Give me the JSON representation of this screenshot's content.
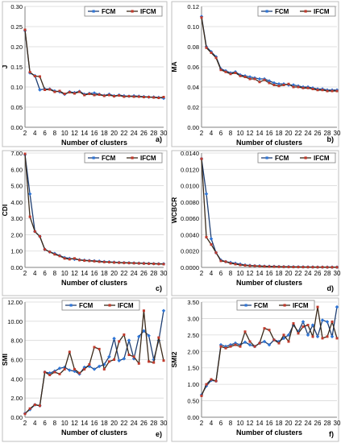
{
  "chart_data": [
    {
      "panel_label": "a)",
      "type": "line",
      "xlabel": "Number of clusters",
      "ylabel": "J",
      "ylim": [
        0,
        0.3
      ],
      "yticks": [
        "0.00",
        "0.05",
        "0.10",
        "0.15",
        "0.20",
        "0.25",
        "0.30"
      ],
      "ytick_values": [
        0,
        0.05,
        0.1,
        0.15,
        0.2,
        0.25,
        0.3
      ],
      "legend_position": "top-right",
      "x": [
        2,
        3,
        4,
        5,
        6,
        7,
        8,
        9,
        10,
        11,
        12,
        13,
        14,
        15,
        16,
        17,
        18,
        19,
        20,
        21,
        22,
        23,
        24,
        25,
        26,
        27,
        28,
        29,
        30
      ],
      "series": [
        {
          "name": "FCM",
          "color": "#2e75d6",
          "values": [
            0.24,
            0.135,
            0.128,
            0.093,
            0.095,
            0.095,
            0.09,
            0.088,
            0.082,
            0.088,
            0.086,
            0.089,
            0.082,
            0.084,
            0.085,
            0.082,
            0.079,
            0.082,
            0.078,
            0.08,
            0.078,
            0.077,
            0.078,
            0.077,
            0.076,
            0.075,
            0.075,
            0.074,
            0.072
          ]
        },
        {
          "name": "IFCM",
          "color": "#c0392b",
          "values": [
            0.242,
            0.137,
            0.127,
            0.126,
            0.093,
            0.094,
            0.088,
            0.09,
            0.083,
            0.087,
            0.084,
            0.088,
            0.08,
            0.083,
            0.08,
            0.081,
            0.078,
            0.08,
            0.077,
            0.079,
            0.076,
            0.077,
            0.076,
            0.076,
            0.075,
            0.075,
            0.074,
            0.073,
            0.075
          ]
        }
      ]
    },
    {
      "panel_label": "b)",
      "type": "line",
      "xlabel": "Number of clusters",
      "ylabel": "MA",
      "ylim": [
        0,
        0.12
      ],
      "yticks": [
        "0.00",
        "0.02",
        "0.04",
        "0.06",
        "0.08",
        "0.10",
        "0.12"
      ],
      "ytick_values": [
        0,
        0.02,
        0.04,
        0.06,
        0.08,
        0.1,
        0.12
      ],
      "legend_position": "top-right",
      "x": [
        2,
        3,
        4,
        5,
        6,
        7,
        8,
        9,
        10,
        11,
        12,
        13,
        14,
        15,
        16,
        17,
        18,
        19,
        20,
        21,
        22,
        23,
        24,
        25,
        26,
        27,
        28,
        29,
        30
      ],
      "series": [
        {
          "name": "FCM",
          "color": "#2e75d6",
          "values": [
            0.11,
            0.08,
            0.075,
            0.07,
            0.058,
            0.056,
            0.054,
            0.055,
            0.052,
            0.051,
            0.05,
            0.049,
            0.048,
            0.048,
            0.046,
            0.044,
            0.043,
            0.043,
            0.042,
            0.042,
            0.041,
            0.04,
            0.04,
            0.039,
            0.038,
            0.038,
            0.037,
            0.037,
            0.037
          ]
        },
        {
          "name": "IFCM",
          "color": "#c0392b",
          "values": [
            0.109,
            0.079,
            0.074,
            0.069,
            0.057,
            0.055,
            0.053,
            0.054,
            0.051,
            0.05,
            0.048,
            0.048,
            0.045,
            0.047,
            0.044,
            0.042,
            0.041,
            0.042,
            0.043,
            0.04,
            0.04,
            0.039,
            0.039,
            0.038,
            0.037,
            0.037,
            0.036,
            0.036,
            0.036
          ]
        }
      ]
    },
    {
      "panel_label": "c)",
      "type": "line",
      "xlabel": "Number of clusters",
      "ylabel": "CDI",
      "ylim": [
        0,
        7
      ],
      "yticks": [
        "0.00",
        "1.00",
        "2.00",
        "3.00",
        "4.00",
        "5.00",
        "6.00",
        "7.00"
      ],
      "ytick_values": [
        0,
        1,
        2,
        3,
        4,
        5,
        6,
        7
      ],
      "legend_position": "top-right",
      "x": [
        2,
        3,
        4,
        5,
        6,
        7,
        8,
        9,
        10,
        11,
        12,
        13,
        14,
        15,
        16,
        17,
        18,
        19,
        20,
        21,
        22,
        23,
        24,
        25,
        26,
        27,
        28,
        29,
        30
      ],
      "series": [
        {
          "name": "FCM",
          "color": "#2e75d6",
          "values": [
            6.9,
            4.5,
            2.2,
            1.9,
            1.1,
            0.95,
            0.85,
            0.72,
            0.6,
            0.55,
            0.5,
            0.47,
            0.44,
            0.42,
            0.4,
            0.38,
            0.35,
            0.34,
            0.32,
            0.3,
            0.29,
            0.28,
            0.27,
            0.26,
            0.25,
            0.24,
            0.23,
            0.22,
            0.22
          ]
        },
        {
          "name": "IFCM",
          "color": "#c0392b",
          "values": [
            6.95,
            3.1,
            2.2,
            1.9,
            1.1,
            0.95,
            0.8,
            0.7,
            0.55,
            0.5,
            0.55,
            0.45,
            0.42,
            0.4,
            0.38,
            0.35,
            0.33,
            0.32,
            0.3,
            0.29,
            0.28,
            0.27,
            0.26,
            0.25,
            0.24,
            0.23,
            0.22,
            0.21,
            0.2
          ]
        }
      ]
    },
    {
      "panel_label": "d)",
      "type": "line",
      "xlabel": "Number of clusters",
      "ylabel": "WCBCR",
      "ylim": [
        0,
        0.014
      ],
      "yticks": [
        "0.0000",
        "0.0020",
        "0.0040",
        "0.0060",
        "0.0080",
        "0.0100",
        "0.0120",
        "0.0140"
      ],
      "ytick_values": [
        0,
        0.002,
        0.004,
        0.006,
        0.008,
        0.01,
        0.012,
        0.014
      ],
      "legend_position": "top-right",
      "x": [
        2,
        3,
        4,
        5,
        6,
        7,
        8,
        9,
        10,
        11,
        12,
        13,
        14,
        15,
        16,
        17,
        18,
        19,
        20,
        21,
        22,
        23,
        24,
        25,
        26,
        27,
        28,
        29,
        30
      ],
      "series": [
        {
          "name": "FCM",
          "color": "#2e75d6",
          "values": [
            0.0133,
            0.009,
            0.0035,
            0.0018,
            0.0009,
            0.0007,
            0.0006,
            0.0005,
            0.0004,
            0.0003,
            0.00025,
            0.0002,
            0.00018,
            0.00015,
            0.00013,
            0.00012,
            0.0001,
            9e-05,
            8e-05,
            7e-05,
            6e-05,
            6e-05,
            5e-05,
            5e-05,
            4e-05,
            4e-05,
            3e-05,
            3e-05,
            3e-05
          ]
        },
        {
          "name": "IFCM",
          "color": "#c0392b",
          "values": [
            0.0133,
            0.0037,
            0.0028,
            0.0018,
            0.0008,
            0.0007,
            0.0005,
            0.0004,
            0.0003,
            0.00025,
            0.0002,
            0.00018,
            0.00015,
            0.00012,
            0.0001,
            9e-05,
            8e-05,
            7e-05,
            6e-05,
            5e-05,
            5e-05,
            4e-05,
            4e-05,
            3e-05,
            3e-05,
            3e-05,
            2e-05,
            2e-05,
            2e-05
          ]
        }
      ]
    },
    {
      "panel_label": "e)",
      "type": "line",
      "xlabel": "Number of clusters",
      "ylabel": "SMI",
      "ylim": [
        0,
        12
      ],
      "yticks": [
        "0.00",
        "2.00",
        "4.00",
        "6.00",
        "8.00",
        "10.00",
        "12.00"
      ],
      "ytick_values": [
        0,
        2,
        4,
        6,
        8,
        10,
        12
      ],
      "legend_position": "top",
      "x": [
        2,
        3,
        4,
        5,
        6,
        7,
        8,
        9,
        10,
        11,
        12,
        13,
        14,
        15,
        16,
        17,
        18,
        19,
        20,
        21,
        22,
        23,
        24,
        25,
        26,
        27,
        28,
        29,
        30
      ],
      "series": [
        {
          "name": "FCM",
          "color": "#2e75d6",
          "values": [
            0.4,
            0.8,
            1.3,
            1.2,
            4.7,
            4.6,
            4.8,
            5.1,
            5.2,
            4.9,
            4.8,
            4.5,
            5.2,
            5.3,
            5.0,
            5.3,
            5.5,
            6.3,
            8.2,
            5.9,
            6.1,
            8.0,
            6.1,
            8.4,
            9.0,
            8.5,
            6.0,
            8.0,
            11.1
          ]
        },
        {
          "name": "IFCM",
          "color": "#c0392b",
          "values": [
            0.35,
            0.9,
            1.3,
            1.2,
            4.7,
            4.4,
            4.7,
            4.5,
            5.0,
            6.8,
            5.0,
            4.6,
            5.0,
            5.5,
            7.3,
            7.1,
            5.0,
            5.8,
            6.0,
            7.9,
            8.6,
            6.5,
            6.3,
            5.6,
            11.1,
            5.8,
            5.7,
            8.3,
            5.9
          ]
        }
      ]
    },
    {
      "panel_label": "f)",
      "type": "line",
      "xlabel": "Number of clusters",
      "ylabel": "SMI2",
      "ylim": [
        0,
        3.5
      ],
      "yticks": [
        "0.00",
        "0.50",
        "1.00",
        "1.50",
        "2.00",
        "2.50",
        "3.00",
        "3.50"
      ],
      "ytick_values": [
        0,
        0.5,
        1,
        1.5,
        2,
        2.5,
        3,
        3.5
      ],
      "legend_position": "top",
      "x": [
        2,
        3,
        4,
        5,
        6,
        7,
        8,
        9,
        10,
        11,
        12,
        13,
        14,
        15,
        16,
        17,
        18,
        19,
        20,
        21,
        22,
        23,
        24,
        25,
        26,
        27,
        28,
        29,
        30
      ],
      "series": [
        {
          "name": "FCM",
          "color": "#2e75d6",
          "values": [
            0.68,
            0.95,
            1.12,
            1.1,
            2.2,
            2.15,
            2.2,
            2.25,
            2.2,
            2.28,
            2.2,
            2.15,
            2.25,
            2.3,
            2.2,
            2.35,
            2.3,
            2.4,
            2.5,
            2.8,
            2.6,
            2.9,
            2.5,
            2.8,
            2.45,
            2.95,
            2.9,
            2.45,
            3.35
          ]
        },
        {
          "name": "IFCM",
          "color": "#c0392b",
          "values": [
            0.65,
            1.0,
            1.15,
            1.1,
            2.15,
            2.1,
            2.15,
            2.2,
            2.15,
            2.6,
            2.3,
            2.15,
            2.25,
            2.7,
            2.65,
            2.35,
            2.25,
            2.5,
            2.3,
            2.85,
            2.55,
            2.75,
            2.8,
            2.45,
            3.35,
            2.4,
            2.45,
            2.9,
            2.4
          ]
        }
      ]
    }
  ]
}
